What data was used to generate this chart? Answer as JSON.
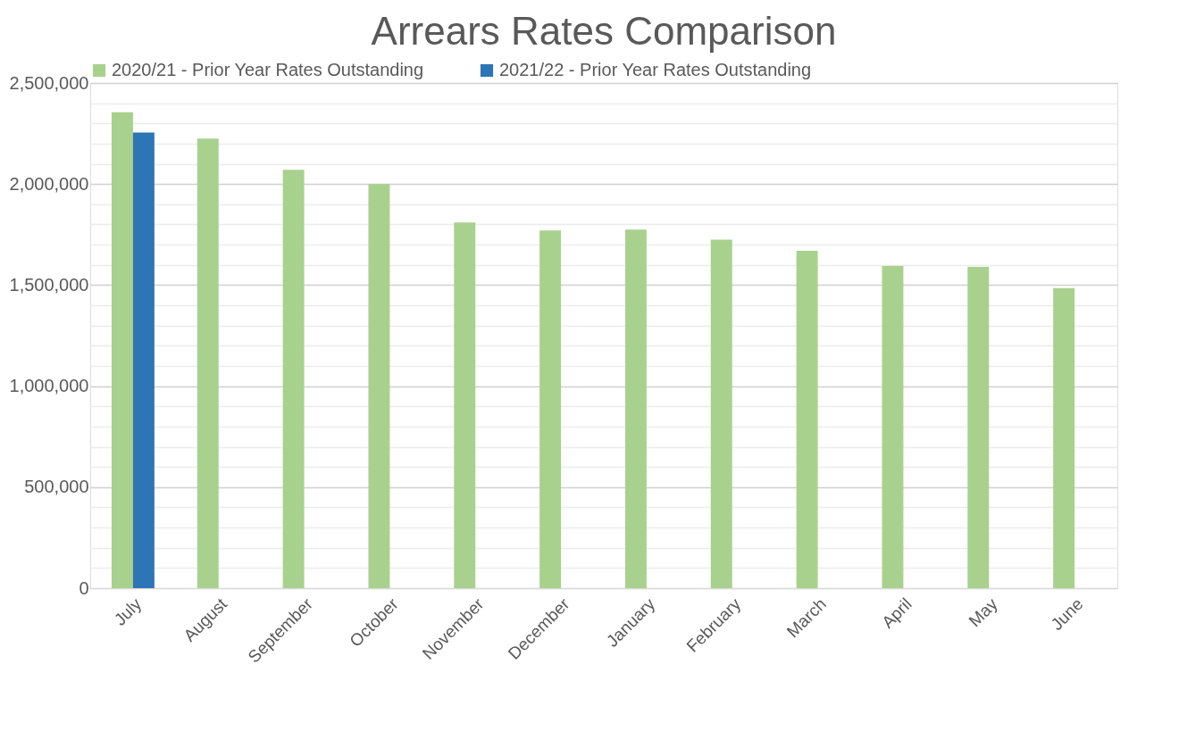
{
  "chart_data": {
    "type": "bar",
    "title": "Arrears Rates Comparison",
    "categories": [
      "July",
      "August",
      "September",
      "October",
      "November",
      "December",
      "January",
      "February",
      "March",
      "April",
      "May",
      "June"
    ],
    "series": [
      {
        "name": "2020/21 - Prior Year Rates Outstanding",
        "color": "#a9d18e",
        "values": [
          2355000,
          2225000,
          2070000,
          2000000,
          1810000,
          1770000,
          1775000,
          1725000,
          1670000,
          1595000,
          1590000,
          1485000
        ]
      },
      {
        "name": "2021/22 - Prior Year Rates Outstanding",
        "color": "#2e75b6",
        "values": [
          2255000,
          null,
          null,
          null,
          null,
          null,
          null,
          null,
          null,
          null,
          null,
          null
        ]
      }
    ],
    "ylim": [
      0,
      2500000
    ],
    "yticks": [
      0,
      {
        "value": 100000,
        "label": null
      },
      {
        "value": 200000,
        "label": null
      },
      {
        "value": 300000,
        "label": null
      },
      {
        "value": 400000,
        "label": null
      },
      {
        "value": 500000,
        "label": "500,000"
      },
      {
        "value": 600000,
        "label": null
      },
      {
        "value": 700000,
        "label": null
      },
      {
        "value": 800000,
        "label": null
      },
      {
        "value": 900000,
        "label": null
      },
      {
        "value": 1000000,
        "label": "1,000,000"
      },
      {
        "value": 1100000,
        "label": null
      },
      {
        "value": 1200000,
        "label": null
      },
      {
        "value": 1300000,
        "label": null
      },
      {
        "value": 1400000,
        "label": null
      },
      {
        "value": 1500000,
        "label": "1,500,000"
      },
      {
        "value": 1600000,
        "label": null
      },
      {
        "value": 1700000,
        "label": null
      },
      {
        "value": 1800000,
        "label": null
      },
      {
        "value": 1900000,
        "label": null
      },
      {
        "value": 2000000,
        "label": "2,000,000"
      },
      {
        "value": 2100000,
        "label": null
      },
      {
        "value": 2200000,
        "label": null
      },
      {
        "value": 2300000,
        "label": null
      },
      {
        "value": 2400000,
        "label": null
      },
      {
        "value": 2500000,
        "label": "2,500,000"
      }
    ],
    "grid": "y",
    "legend": "top"
  }
}
